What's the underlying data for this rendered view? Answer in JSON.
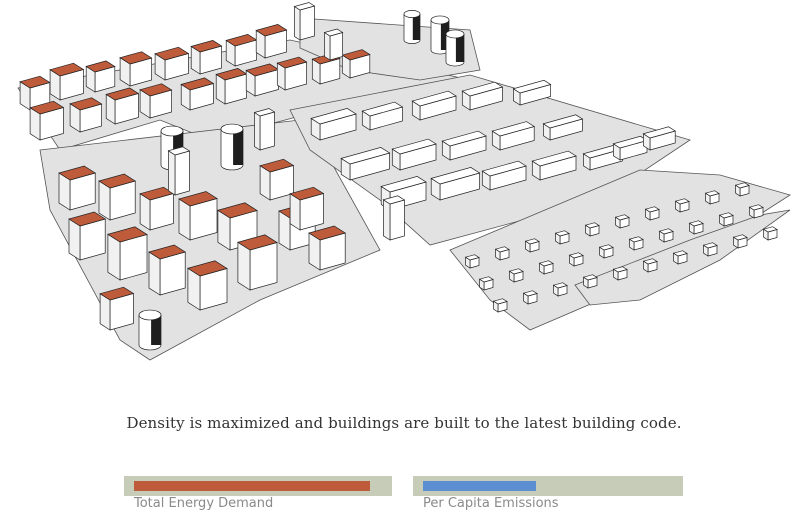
{
  "caption": "Density is maximized and buildings are built to the latest building code.",
  "meters": [
    {
      "label": "Total Energy Demand",
      "fraction": 0.95,
      "color": "#bd5b3b",
      "track": "#c7ccb8"
    },
    {
      "label": "Per Capita Emissions",
      "fraction": 0.45,
      "color": "#5b8fd2",
      "track": "#c7ccb8"
    }
  ],
  "scene": {
    "roof_color": "#bd5b3b",
    "wall_color": "#ffffff",
    "ground_color": "#e2e2e2"
  }
}
